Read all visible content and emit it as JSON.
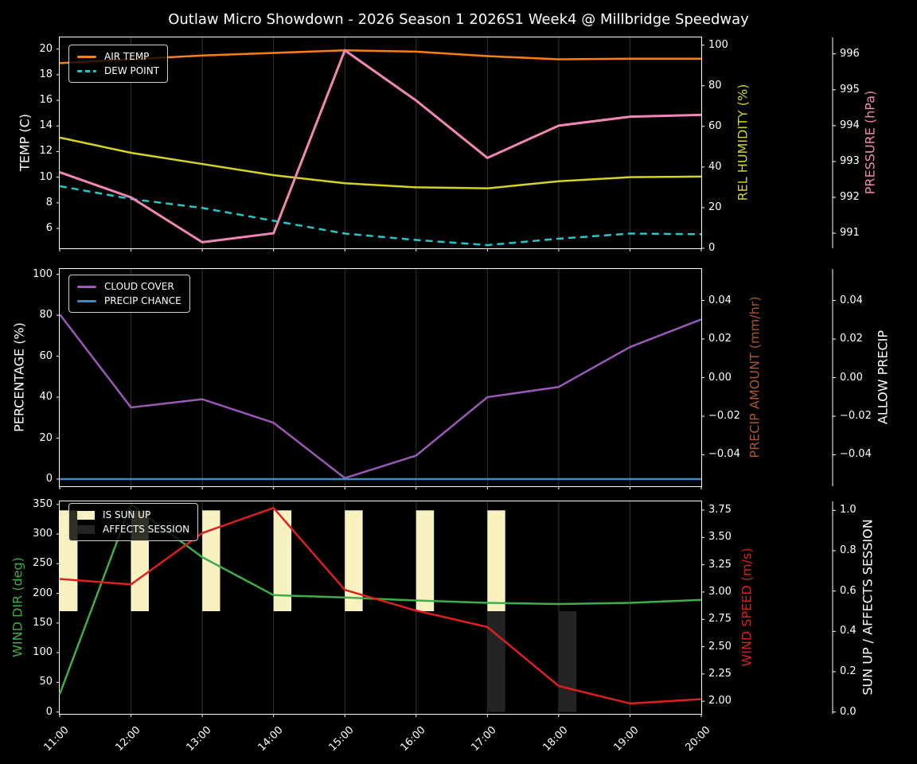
{
  "title": "Outlaw Micro Showdown - 2026 Season 1 2026S1 Week4 @ Millbridge Speedway",
  "colors": {
    "background": "#000000",
    "grid": "#333333",
    "spine": "#ffffff",
    "tick_text": "#ffffff"
  },
  "x_tick_labels": [
    "11:00",
    "12:00",
    "13:00",
    "14:00",
    "15:00",
    "16:00",
    "17:00",
    "18:00",
    "19:00",
    "20:00"
  ],
  "chart_data": [
    {
      "type": "line",
      "x_hours": [
        11,
        12,
        13,
        14,
        15,
        16,
        17,
        18,
        19,
        20
      ],
      "axes": [
        {
          "id": "temp",
          "label": "TEMP (C)",
          "side": "left",
          "label_color": "#ffffff",
          "ylim": [
            4.45,
            20.91
          ],
          "tick_values": [
            6,
            8,
            10,
            12,
            14,
            16,
            18,
            20
          ],
          "tick_labels": [
            "6",
            "8",
            "10",
            "12",
            "14",
            "16",
            "18",
            "20"
          ]
        },
        {
          "id": "humidity",
          "label": "REL HUMIDITY (%)",
          "side": "right",
          "label_color": "#d4d422",
          "ylim": [
            0,
            103.8
          ],
          "tick_values": [
            0,
            20,
            40,
            60,
            80,
            100
          ],
          "tick_labels": [
            "0",
            "20",
            "40",
            "60",
            "80",
            "100"
          ]
        },
        {
          "id": "pressure",
          "label": "PRESSURE (hPa)",
          "side": "far_right",
          "label_color": "#f187b5",
          "ylim": [
            990.58,
            996.46
          ],
          "tick_values": [
            991,
            992,
            993,
            994,
            995,
            996
          ],
          "tick_labels": [
            "991",
            "992",
            "993",
            "994",
            "995",
            "996"
          ]
        }
      ],
      "series": [
        {
          "name": "AIR TEMP",
          "type": "line",
          "axis": "temp",
          "color": "#ff7f0e",
          "dash": false,
          "width": 2.5,
          "values": [
            18.9,
            19.2,
            19.5,
            19.7,
            19.9,
            19.8,
            19.45,
            19.2,
            19.25,
            19.25
          ]
        },
        {
          "name": "DEW POINT",
          "type": "line",
          "axis": "temp",
          "color": "#26c6c6",
          "dash": true,
          "width": 2.5,
          "values": [
            9.3,
            8.3,
            7.6,
            6.6,
            5.6,
            5.1,
            4.7,
            5.2,
            5.6,
            5.55
          ]
        },
        {
          "name": "REL HUMIDITY",
          "type": "line",
          "axis": "humidity",
          "color": "#d4d422",
          "dash": false,
          "width": 2.5,
          "values": [
            54.5,
            47,
            41.5,
            36,
            32,
            30,
            29.5,
            33,
            35,
            35.3
          ]
        },
        {
          "name": "PRESSURE",
          "type": "line",
          "axis": "pressure",
          "color": "#f187b5",
          "dash": false,
          "width": 3,
          "values": [
            992.7,
            992.0,
            990.75,
            991.0,
            996.1,
            994.7,
            993.1,
            994.0,
            994.25,
            994.3
          ]
        }
      ],
      "legend_series": [
        0,
        1
      ]
    },
    {
      "type": "line",
      "x_hours": [
        11,
        12,
        13,
        14,
        15,
        16,
        17,
        18,
        19,
        20
      ],
      "axes": [
        {
          "id": "pct",
          "label": "PERCENTAGE (%)",
          "side": "left",
          "label_color": "#ffffff",
          "ylim": [
            -3.5,
            102.6
          ],
          "tick_values": [
            0,
            20,
            40,
            60,
            80,
            100
          ],
          "tick_labels": [
            "0",
            "20",
            "40",
            "60",
            "80",
            "100"
          ]
        },
        {
          "id": "precip",
          "label": "PRECIP AMOUNT (mm/hr)",
          "side": "right",
          "label_color": "#a9572b",
          "ylim": [
            -0.0563,
            0.0563
          ],
          "tick_values": [
            0.04,
            0.02,
            0,
            -0.02,
            -0.04
          ],
          "tick_labels": [
            "0.04",
            "0.02",
            "0.00",
            "−0.02",
            "−0.04"
          ]
        },
        {
          "id": "allow",
          "label": "ALLOW PRECIP",
          "side": "far_right",
          "label_color": "#ffffff",
          "ylim": [
            -0.0563,
            0.0563
          ],
          "tick_values": [
            0.04,
            0.02,
            0,
            -0.02,
            -0.04
          ],
          "tick_labels": [
            "0.04",
            "0.02",
            "0.00",
            "−0.02",
            "−0.04"
          ]
        }
      ],
      "series": [
        {
          "name": "CLOUD COVER",
          "type": "line",
          "axis": "pct",
          "color": "#9b59b6",
          "dash": false,
          "width": 2.5,
          "values": [
            80.5,
            35,
            39,
            27.5,
            0.5,
            11.5,
            40,
            45,
            64.5,
            78
          ]
        },
        {
          "name": "PRECIP CHANCE",
          "type": "line",
          "axis": "pct",
          "color": "#4787c0",
          "dash": false,
          "width": 2.5,
          "values": [
            0,
            0,
            0,
            0,
            0,
            0,
            0,
            0,
            0,
            0
          ]
        }
      ],
      "legend_series": [
        0,
        1
      ]
    },
    {
      "type": "line",
      "x_hours": [
        11,
        12,
        13,
        14,
        15,
        16,
        17,
        18,
        19,
        20
      ],
      "axes": [
        {
          "id": "dir",
          "label": "WIND DIR (deg)",
          "side": "left",
          "label_color": "#3fae4a",
          "ylim": [
            -3.1,
            355
          ],
          "tick_values": [
            0,
            50,
            100,
            150,
            200,
            250,
            300,
            350
          ],
          "tick_labels": [
            "0",
            "50",
            "100",
            "150",
            "200",
            "250",
            "300",
            "350"
          ]
        },
        {
          "id": "speed",
          "label": "WIND SPEED (m/s)",
          "side": "right",
          "label_color": "#dc2020",
          "ylim": [
            1.885,
            3.83
          ],
          "tick_values": [
            2.0,
            2.25,
            2.5,
            2.75,
            3.0,
            3.25,
            3.5,
            3.75
          ],
          "tick_labels": [
            "2.00",
            "2.25",
            "2.50",
            "2.75",
            "3.00",
            "3.25",
            "3.50",
            "3.75"
          ]
        },
        {
          "id": "sunup",
          "label": "SUN UP / AFFECTS SESSION",
          "side": "far_right",
          "label_color": "#ffffff",
          "ylim": [
            -0.0091,
            1.0446
          ],
          "tick_values": [
            0,
            0.2,
            0.4,
            0.6,
            0.8,
            1.0
          ],
          "tick_labels": [
            "0.0",
            "0.2",
            "0.4",
            "0.6",
            "0.8",
            "1.0"
          ]
        }
      ],
      "series": [
        {
          "name": "WIND DIR",
          "type": "line",
          "axis": "dir",
          "color": "#3fae4a",
          "dash": false,
          "width": 2.5,
          "values": [
            30,
            350,
            261,
            197,
            193,
            188,
            184,
            182,
            184,
            189
          ]
        },
        {
          "name": "WIND SPEED",
          "type": "line",
          "axis": "speed",
          "color": "#dc2020",
          "dash": false,
          "width": 2.5,
          "values": [
            3.12,
            3.07,
            3.54,
            3.77,
            3.02,
            2.83,
            2.68,
            2.14,
            1.98,
            2.02
          ]
        },
        {
          "name": "IS SUN UP",
          "type": "bar",
          "axis": "sunup",
          "color": "#f7f2c0",
          "bar": {
            "y0": 0.5,
            "y1": 1.0,
            "width_hours": 0.25
          },
          "present": [
            1,
            1,
            1,
            1,
            1,
            1,
            1,
            0,
            0,
            0
          ]
        },
        {
          "name": "AFFECTS SESSION",
          "type": "bar",
          "axis": "sunup",
          "color": "#242424",
          "bar": {
            "y0": 0.0,
            "y1": 0.5,
            "width_hours": 0.25
          },
          "present": [
            0,
            0,
            0,
            0,
            0,
            0,
            1,
            1,
            0,
            0
          ]
        }
      ],
      "legend_series": [
        2,
        3
      ]
    }
  ]
}
